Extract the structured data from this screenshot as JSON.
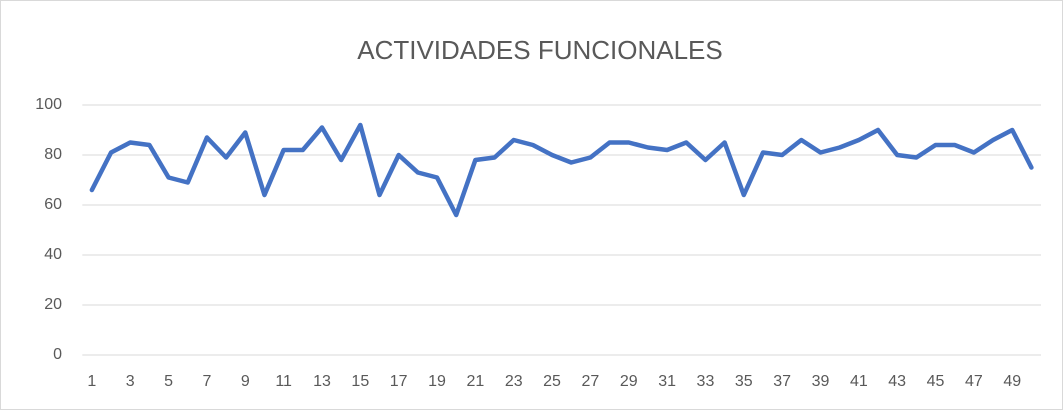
{
  "chart_data": {
    "type": "line",
    "title": "ACTIVIDADES FUNCIONALES",
    "categories": [
      1,
      null,
      3,
      null,
      5,
      null,
      7,
      null,
      9,
      null,
      11,
      null,
      13,
      null,
      15,
      null,
      17,
      null,
      19,
      null,
      21,
      null,
      23,
      null,
      25,
      null,
      27,
      null,
      29,
      null,
      31,
      null,
      33,
      null,
      35,
      null,
      37,
      null,
      39,
      null,
      41,
      null,
      43,
      null,
      45,
      null,
      47,
      null,
      49,
      null
    ],
    "series": [
      {
        "color": "#4472c4",
        "values": [
          66,
          81,
          85,
          84,
          71,
          69,
          87,
          79,
          89,
          64,
          82,
          82,
          91,
          78,
          92,
          64,
          80,
          73,
          71,
          56,
          78,
          79,
          86,
          84,
          80,
          77,
          79,
          85,
          85,
          83,
          82,
          85,
          78,
          85,
          64,
          81,
          80,
          86,
          81,
          83,
          86,
          90,
          80,
          79,
          84,
          84,
          81,
          86,
          90,
          75
        ]
      }
    ],
    "ylim": [
      0,
      100
    ],
    "yticks": [
      0,
      20,
      40,
      60,
      80,
      100
    ],
    "grid": true
  }
}
